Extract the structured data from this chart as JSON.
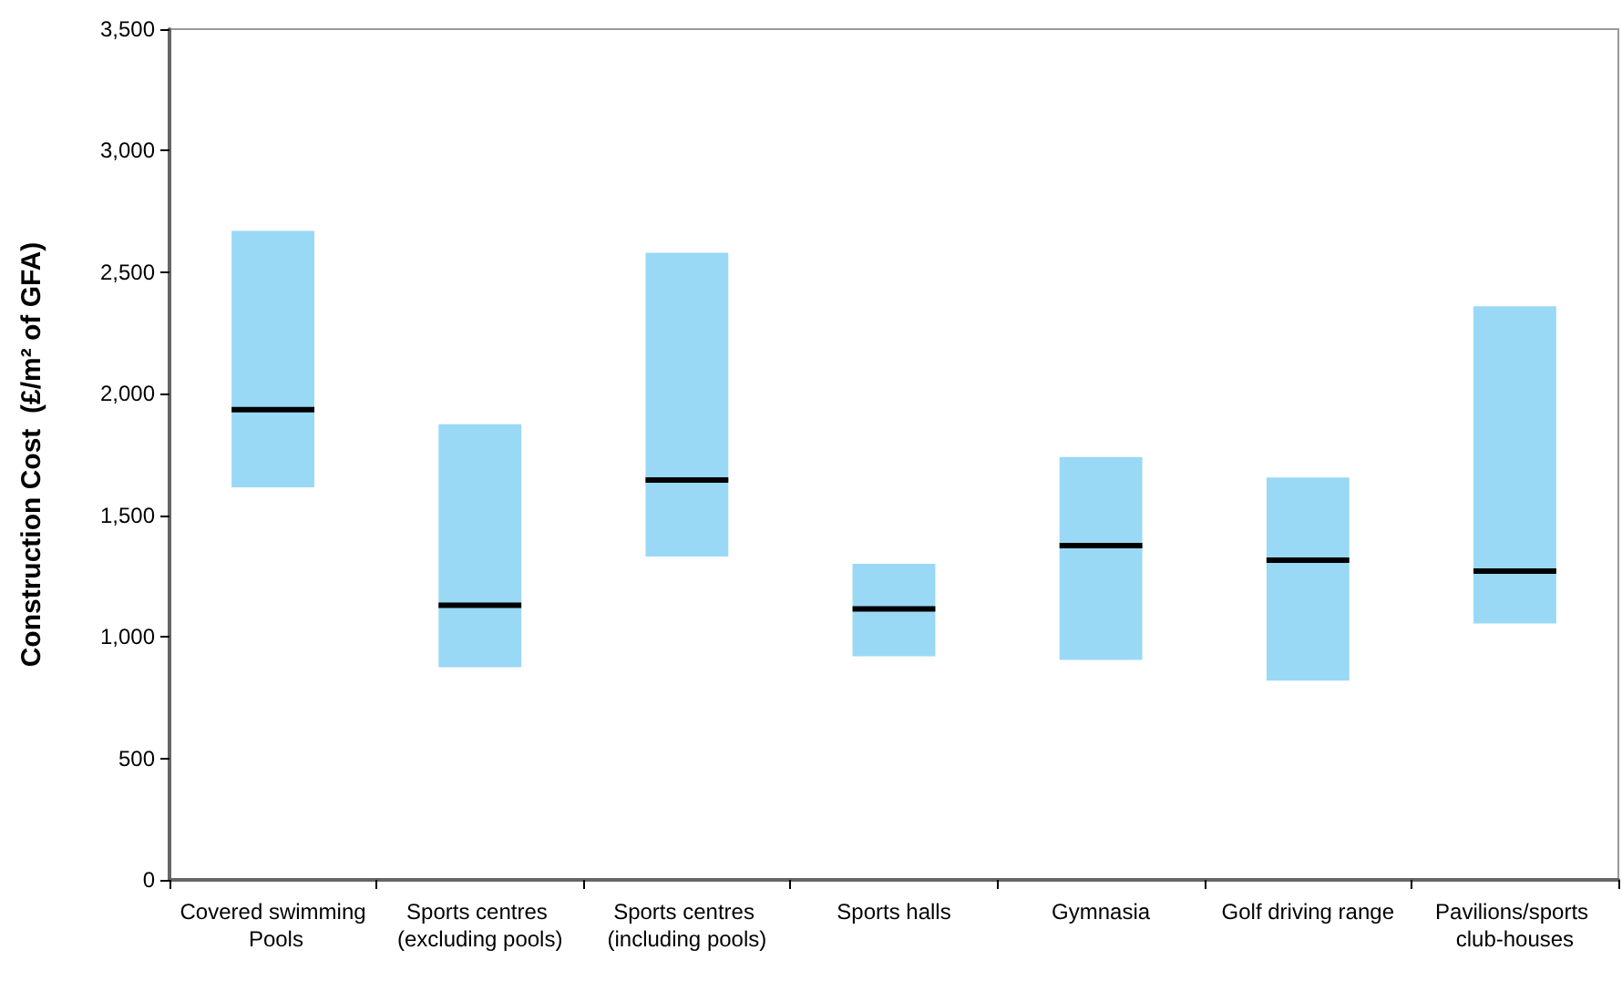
{
  "chart_data": {
    "type": "box",
    "ylabel": "Construction Cost  (£/m² of GFA)",
    "categories": [
      "Covered swimming Pools",
      "Sports centres (excluding pools)",
      "Sports centres (including pools)",
      "Sports halls",
      "Gymnasia",
      "Golf driving range",
      "Pavilions/sports club-houses"
    ],
    "color": "#99d9f5",
    "boxes": [
      {
        "low": 1615,
        "q1": 1615,
        "median": 1935,
        "q3": 2670,
        "high": 2670
      },
      {
        "low": 875,
        "q1": 875,
        "median": 1130,
        "q3": 1875,
        "high": 1875
      },
      {
        "low": 1330,
        "q1": 1330,
        "median": 1645,
        "q3": 2580,
        "high": 2580
      },
      {
        "low": 920,
        "q1": 920,
        "median": 1115,
        "q3": 1300,
        "high": 1300
      },
      {
        "low": 905,
        "q1": 905,
        "median": 1375,
        "q3": 1740,
        "high": 1740
      },
      {
        "low": 820,
        "q1": 820,
        "median": 1315,
        "q3": 1655,
        "high": 1655
      },
      {
        "low": 1055,
        "q1": 1055,
        "median": 1270,
        "q3": 2360,
        "high": 2360
      }
    ],
    "ylim": [
      0,
      3500
    ],
    "yticks": [
      0,
      500,
      {
        "value": 1000,
        "label": "1,000"
      },
      {
        "value": 1500,
        "label": "1,500"
      },
      {
        "value": 2000,
        "label": "2,000"
      },
      {
        "value": 2500,
        "label": "2,500"
      },
      {
        "value": 3000,
        "label": "3,000"
      },
      {
        "value": 3500,
        "label": "3,500"
      }
    ],
    "grid": false
  }
}
